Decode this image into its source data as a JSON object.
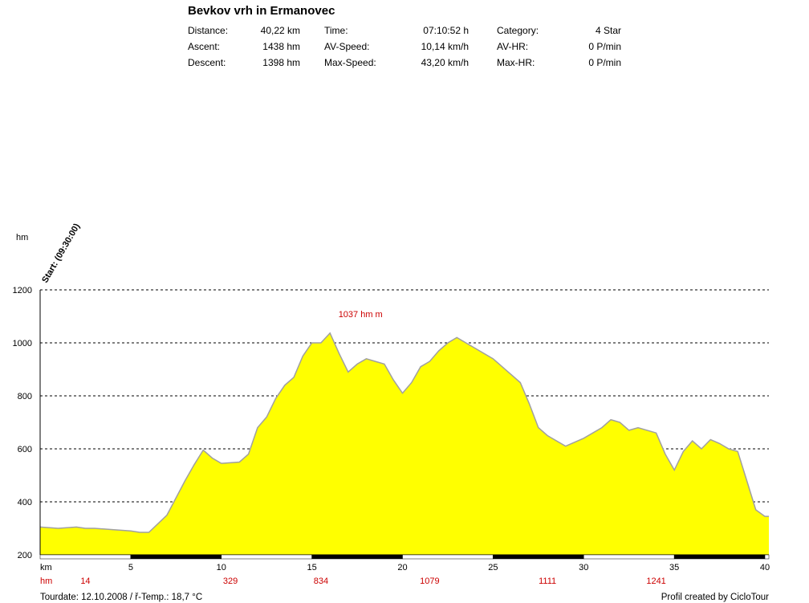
{
  "title": "Bevkov vrh in Ermanovec",
  "stats": {
    "distance_label": "Distance:",
    "distance_value": "40,22 km",
    "ascent_label": "Ascent:",
    "ascent_value": "1438 hm",
    "descent_label": "Descent:",
    "descent_value": "1398 hm",
    "time_label": "Time:",
    "time_value": "07:10:52 h",
    "avspeed_label": "AV-Speed:",
    "avspeed_value": "10,14 km/h",
    "maxspeed_label": "Max-Speed:",
    "maxspeed_value": "43,20 km/h",
    "category_label": "Category:",
    "category_value": "4 Star",
    "avhr_label": "AV-HR:",
    "avhr_value": "0 P/min",
    "maxhr_label": "Max-HR:",
    "maxhr_value": "0 P/min"
  },
  "start_label": "Start: (09:30:00)",
  "max_label": "1037 hm m",
  "footer": {
    "left": "Tourdate: 12.10.2008  /  ř-Temp.: 18,7 °C",
    "right": "Profil created by CicloTour"
  },
  "colors": {
    "fill": "#ffff00",
    "outline": "#a0a0a0",
    "grid": "#000000",
    "red": "#cc0000"
  },
  "chart_data": {
    "type": "area",
    "ylabel": "hm",
    "xlabel": "km",
    "ylim": [
      200,
      1200
    ],
    "xlim": [
      0,
      40.22
    ],
    "y_ticks": [
      200,
      400,
      600,
      800,
      1000,
      1200
    ],
    "x_ticks": [
      5,
      10,
      15,
      20,
      25,
      30,
      35,
      40
    ],
    "grid": true,
    "x": [
      0,
      1,
      2,
      2.5,
      3,
      4,
      5,
      5.5,
      6,
      7,
      8,
      8.5,
      9,
      9.5,
      10,
      11,
      11.5,
      12,
      12.5,
      13,
      13.5,
      14,
      14.5,
      15,
      15.5,
      16,
      16.5,
      17,
      17.5,
      18,
      18.5,
      19,
      19.5,
      20,
      20.5,
      21,
      21.5,
      22,
      22.5,
      23,
      23.5,
      24,
      25,
      26,
      26.5,
      27,
      27.5,
      28,
      29,
      30,
      31,
      31.5,
      32,
      32.5,
      33,
      34,
      34.5,
      35,
      35.5,
      36,
      36.5,
      37,
      37.5,
      38,
      38.5,
      39,
      39.5,
      40,
      40.22
    ],
    "y": [
      305,
      300,
      305,
      300,
      300,
      295,
      290,
      285,
      285,
      350,
      480,
      540,
      595,
      565,
      545,
      550,
      580,
      680,
      720,
      790,
      840,
      870,
      950,
      1000,
      1000,
      1037,
      960,
      890,
      920,
      940,
      930,
      920,
      860,
      810,
      850,
      910,
      930,
      970,
      1000,
      1020,
      1000,
      980,
      940,
      880,
      850,
      770,
      680,
      650,
      610,
      640,
      680,
      710,
      700,
      670,
      680,
      660,
      580,
      520,
      590,
      630,
      600,
      635,
      620,
      600,
      590,
      480,
      370,
      345,
      345
    ],
    "x_data_labels": [
      {
        "km": 0,
        "text": "hm"
      },
      {
        "km": 2.5,
        "text": "14"
      },
      {
        "km": 10.5,
        "text": "329"
      },
      {
        "km": 15.5,
        "text": "834"
      },
      {
        "km": 21.5,
        "text": "1079"
      },
      {
        "km": 28,
        "text": "1111"
      },
      {
        "km": 34,
        "text": "1241"
      }
    ],
    "max_point": {
      "km": 16,
      "hm": 1037
    }
  }
}
